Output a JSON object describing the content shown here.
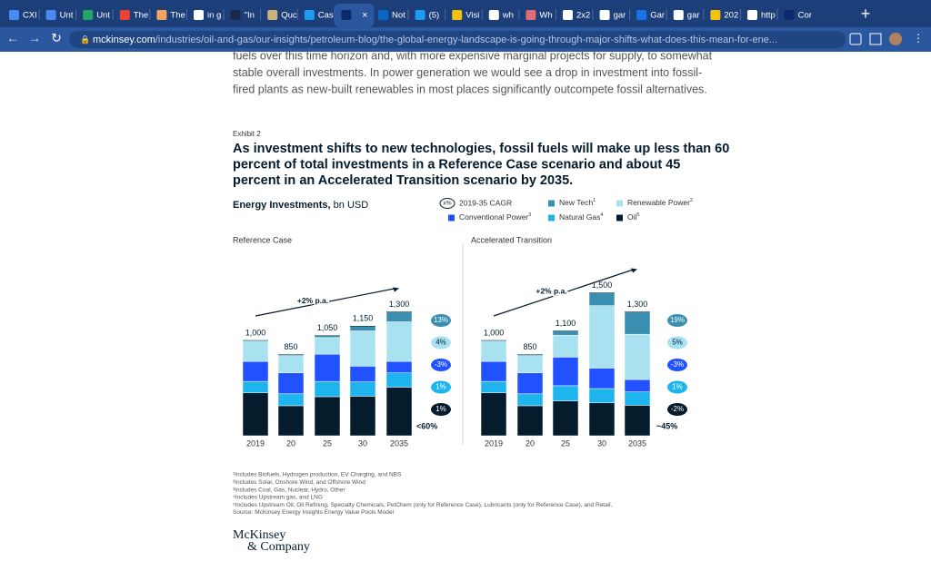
{
  "browser": {
    "tabs": [
      {
        "title": "CXI",
        "icon": "#4a8af4"
      },
      {
        "title": "Unt",
        "icon": "#4a8af4"
      },
      {
        "title": "Unt",
        "icon": "#23a566"
      },
      {
        "title": "The",
        "icon": "#ea4335"
      },
      {
        "title": "The",
        "icon": "#f4a261"
      },
      {
        "title": "in g",
        "icon": "#ffffff"
      },
      {
        "title": "\"In",
        "icon": "#1b2a4a"
      },
      {
        "title": "Quc",
        "icon": "#c9b37a"
      },
      {
        "title": "Cas",
        "icon": "#1d9bf0"
      },
      {
        "title": null,
        "icon": "#0a2a6b"
      },
      {
        "title": "Not",
        "icon": "#0a66c2"
      },
      {
        "title": "(5)",
        "icon": "#1d9bf0"
      },
      {
        "title": "Visi",
        "icon": "#f4c20d"
      },
      {
        "title": "wh",
        "icon": "#ffffff"
      },
      {
        "title": "Wh",
        "icon": "#e06c75"
      },
      {
        "title": "2x2",
        "icon": "#ffffff"
      },
      {
        "title": "gar",
        "icon": "#ffffff"
      },
      {
        "title": "Gar",
        "icon": "#1a73e8"
      },
      {
        "title": "gar",
        "icon": "#ffffff"
      },
      {
        "title": "202",
        "icon": "#f4c20d"
      },
      {
        "title": "http",
        "icon": "#ffffff"
      },
      {
        "title": "Cor",
        "icon": "#0a2a6b"
      }
    ],
    "url_host": "mckinsey.com",
    "url_path": "/industries/oil-and-gas/our-insights/petroleum-blog/the-global-energy-landscape-is-going-through-major-shifts-what-does-this-mean-for-ene..."
  },
  "article": {
    "lines": [
      "fuels over this time horizon and, with more expensive marginal projects for supply, to somewhat",
      "stable overall investments. In power generation we would see a drop in investment into fossil-",
      "fired plants as new-built renewables in most places significantly outcompete fossil alternatives."
    ]
  },
  "exhibit": {
    "label": "Exhibit 2",
    "title_lines": [
      "As investment shifts to new technologies, fossil fuels will make up less than 60",
      "percent of total investments in a Reference Case scenario and about 45",
      "percent in an Accelerated Transition scenario by 2035."
    ],
    "measure": "Energy Investments,",
    "unit": "bn USD",
    "cagr_badge": "x%",
    "cagr_label": "2019-35 CAGR"
  },
  "chart_data": [
    {
      "type": "bar",
      "stacked": true,
      "title": "Reference Case",
      "categories": [
        "2019",
        "20",
        "25",
        "30",
        "2035"
      ],
      "series": [
        {
          "name": "Oil",
          "footnote": "5",
          "color": "#051c2c",
          "values": [
            450,
            315,
            410,
            415,
            510
          ],
          "cagr": "1%"
        },
        {
          "name": "Natural Gas",
          "footnote": "4",
          "color": "#1eb4ee",
          "values": [
            120,
            125,
            160,
            150,
            150
          ],
          "cagr": "1%"
        },
        {
          "name": "Conventional Power",
          "footnote": "3",
          "color": "#2251ff",
          "values": [
            210,
            220,
            285,
            165,
            120
          ],
          "cagr": "-3%"
        },
        {
          "name": "Renewable Power",
          "footnote": "2",
          "color": "#a8e2f0",
          "values": [
            220,
            180,
            175,
            370,
            415
          ],
          "cagr": "4%"
        },
        {
          "name": "New Tech",
          "footnote": "1",
          "color": "#3a8fb0",
          "values": [
            0,
            10,
            20,
            50,
            105
          ],
          "cagr": "13%"
        }
      ],
      "totals": [
        1000,
        850,
        1050,
        1150,
        1300
      ],
      "total_labels": [
        "1,000",
        "850",
        "1,050",
        "1,150",
        "1,300"
      ],
      "trend_label": "+2% p.a.",
      "share_note": "<60%"
    },
    {
      "type": "bar",
      "stacked": true,
      "title": "Accelerated Transition",
      "categories": [
        "2019",
        "20",
        "25",
        "30",
        "2035"
      ],
      "series": [
        {
          "name": "Oil",
          "color": "#051c2c",
          "values": [
            450,
            315,
            365,
            345,
            320
          ],
          "cagr": "-2%"
        },
        {
          "name": "Natural Gas",
          "color": "#1eb4ee",
          "values": [
            120,
            125,
            160,
            150,
            140
          ],
          "cagr": "1%"
        },
        {
          "name": "Conventional Power",
          "color": "#2251ff",
          "values": [
            210,
            220,
            300,
            215,
            130
          ],
          "cagr": "-3%"
        },
        {
          "name": "Renewable Power",
          "color": "#a8e2f0",
          "values": [
            220,
            180,
            230,
            655,
            475
          ],
          "cagr": "5%"
        },
        {
          "name": "New Tech",
          "color": "#3a8fb0",
          "values": [
            0,
            10,
            45,
            135,
            235
          ],
          "cagr": "19%"
        }
      ],
      "totals": [
        1000,
        850,
        1100,
        1500,
        1300
      ],
      "total_labels": [
        "1,000",
        "850",
        "1,100",
        "1,500",
        "1,300"
      ],
      "trend_label": "+2% p.a.",
      "share_note": "~45%"
    }
  ],
  "footnotes": [
    "¹Includes Biofuels, Hydrogen production, EV Charging, and NBS",
    "²Includes Solar, Onshore Wind, and Offshore Wind",
    "³Includes Coal, Gas, Nuclear, Hydro, Other",
    "⁴Includes Upstream gas, and LNG",
    "⁵Includes Upstream Oil, Oil Refining, Specialty Chemicals, PetChem (only for Reference Case), Lubricants (only for Reference Case), and Retail.",
    " Source: McKinsey Energy Insights Energy Value Pools Model"
  ],
  "logo": [
    "McKinsey",
    "& Company"
  ]
}
